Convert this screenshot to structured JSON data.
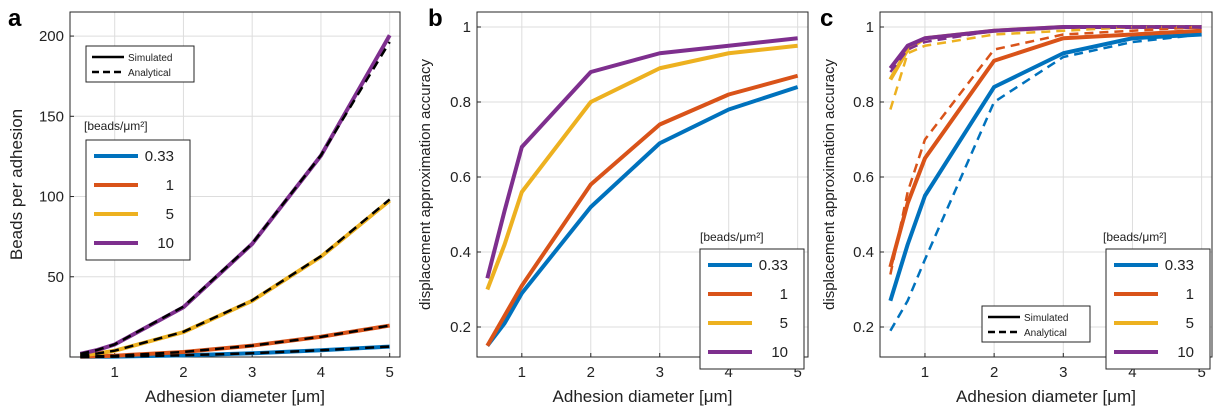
{
  "colors": {
    "0.33": "#0072BD",
    "1": "#D95319",
    "5": "#EDB120",
    "10": "#7E2F8E",
    "analytical": "#000000",
    "grid": "#dddddd",
    "axis": "#262626"
  },
  "chart_data": [
    {
      "panel": "a",
      "type": "line",
      "title": "",
      "xlabel": "Adhesion diameter [μm]",
      "ylabel": "Beads per adhesion",
      "xlim": [
        0.35,
        5.15
      ],
      "ylim": [
        0,
        215
      ],
      "xticks": [
        1,
        2,
        3,
        4,
        5
      ],
      "yticks": [
        50,
        100,
        150,
        200
      ],
      "grid": true,
      "x": [
        0.5,
        0.75,
        1,
        2,
        3,
        4,
        5
      ],
      "series": [
        {
          "name": "0.33",
          "style": "simulated",
          "values": [
            0.07,
            0.15,
            0.26,
            1.0,
            2.3,
            4.2,
            6.5
          ]
        },
        {
          "name": "0.33",
          "style": "analytical",
          "values": [
            0.06,
            0.15,
            0.26,
            1.05,
            2.35,
            4.2,
            6.5
          ]
        },
        {
          "name": "1",
          "style": "simulated",
          "values": [
            0.2,
            0.45,
            0.8,
            3.1,
            7.1,
            12.6,
            19.6
          ]
        },
        {
          "name": "1",
          "style": "analytical",
          "values": [
            0.2,
            0.44,
            0.79,
            3.14,
            7.07,
            12.57,
            19.6
          ]
        },
        {
          "name": "5",
          "style": "simulated",
          "values": [
            1.0,
            2.2,
            3.9,
            15.5,
            35.0,
            62.5,
            97.5
          ]
        },
        {
          "name": "5",
          "style": "analytical",
          "values": [
            0.98,
            2.21,
            3.93,
            15.7,
            35.3,
            62.8,
            98.2
          ]
        },
        {
          "name": "10",
          "style": "simulated",
          "values": [
            2.0,
            4.4,
            7.8,
            31.0,
            70.5,
            125.5,
            200.5
          ]
        },
        {
          "name": "10",
          "style": "analytical",
          "values": [
            1.96,
            4.42,
            7.85,
            31.4,
            70.7,
            125.7,
            196.3
          ]
        }
      ],
      "style_legend": {
        "simulated": "Simulated",
        "analytical": "Analytical",
        "position": "top-left"
      },
      "legend": {
        "title": "[beads/μm²]",
        "entries": [
          "0.33",
          "1",
          "5",
          "10"
        ],
        "position": "middle-left"
      }
    },
    {
      "panel": "b",
      "type": "line",
      "title": "",
      "xlabel": "Adhesion diameter [μm]",
      "ylabel": "displacement approximation accuracy",
      "xlim": [
        0.35,
        5.15
      ],
      "ylim": [
        0.12,
        1.04
      ],
      "xticks": [
        1,
        2,
        3,
        4,
        5
      ],
      "yticks": [
        0.2,
        0.4,
        0.6,
        0.8,
        1
      ],
      "ytick_labels": [
        "0.2",
        "0.4",
        "0.6",
        "0.8",
        "1"
      ],
      "grid": true,
      "x": [
        0.5,
        0.75,
        1,
        2,
        3,
        4,
        5
      ],
      "series": [
        {
          "name": "0.33",
          "style": "simulated",
          "values": [
            0.15,
            0.21,
            0.29,
            0.52,
            0.69,
            0.78,
            0.84
          ]
        },
        {
          "name": "1",
          "style": "simulated",
          "values": [
            0.15,
            0.23,
            0.31,
            0.58,
            0.74,
            0.82,
            0.87
          ]
        },
        {
          "name": "5",
          "style": "simulated",
          "values": [
            0.3,
            0.42,
            0.56,
            0.8,
            0.89,
            0.93,
            0.95
          ]
        },
        {
          "name": "10",
          "style": "simulated",
          "values": [
            0.33,
            0.51,
            0.68,
            0.88,
            0.93,
            0.95,
            0.97
          ]
        }
      ],
      "legend": {
        "title": "[beads/μm²]",
        "entries": [
          "0.33",
          "1",
          "5",
          "10"
        ],
        "position": "bottom-right"
      }
    },
    {
      "panel": "c",
      "type": "line",
      "title": "",
      "xlabel": "Adhesion diameter [μm]",
      "ylabel": "displacement approximation accuracy",
      "xlim": [
        0.35,
        5.15
      ],
      "ylim": [
        0.12,
        1.04
      ],
      "xticks": [
        1,
        2,
        3,
        4,
        5
      ],
      "yticks": [
        0.2,
        0.4,
        0.6,
        0.8,
        1
      ],
      "ytick_labels": [
        "0.2",
        "0.4",
        "0.6",
        "0.8",
        "1"
      ],
      "grid": true,
      "x": [
        0.5,
        0.75,
        1,
        2,
        3,
        4,
        5
      ],
      "series": [
        {
          "name": "0.33",
          "style": "simulated",
          "values": [
            0.27,
            0.42,
            0.55,
            0.84,
            0.93,
            0.97,
            0.98
          ]
        },
        {
          "name": "0.33",
          "style": "analytical",
          "values": [
            0.19,
            0.27,
            0.38,
            0.8,
            0.92,
            0.96,
            0.98
          ]
        },
        {
          "name": "1",
          "style": "simulated",
          "values": [
            0.36,
            0.53,
            0.65,
            0.91,
            0.97,
            0.98,
            0.99
          ]
        },
        {
          "name": "1",
          "style": "analytical",
          "values": [
            0.34,
            0.56,
            0.7,
            0.94,
            0.98,
            0.99,
            1.0
          ]
        },
        {
          "name": "5",
          "style": "simulated",
          "values": [
            0.86,
            0.94,
            0.97,
            0.99,
            1.0,
            1.0,
            1.0
          ]
        },
        {
          "name": "5",
          "style": "analytical",
          "values": [
            0.78,
            0.93,
            0.95,
            0.98,
            0.99,
            1.0,
            1.0
          ]
        },
        {
          "name": "10",
          "style": "simulated",
          "values": [
            0.89,
            0.95,
            0.97,
            0.99,
            1.0,
            1.0,
            1.0
          ]
        },
        {
          "name": "10",
          "style": "analytical",
          "values": [
            0.88,
            0.94,
            0.96,
            0.99,
            1.0,
            1.0,
            1.0
          ]
        }
      ],
      "style_legend": {
        "simulated": "Simulated",
        "analytical": "Analytical",
        "position": "bottom-right"
      },
      "legend": {
        "title": "[beads/μm²]",
        "entries": [
          "0.33",
          "1",
          "5",
          "10"
        ],
        "position": "bottom-right"
      }
    }
  ]
}
